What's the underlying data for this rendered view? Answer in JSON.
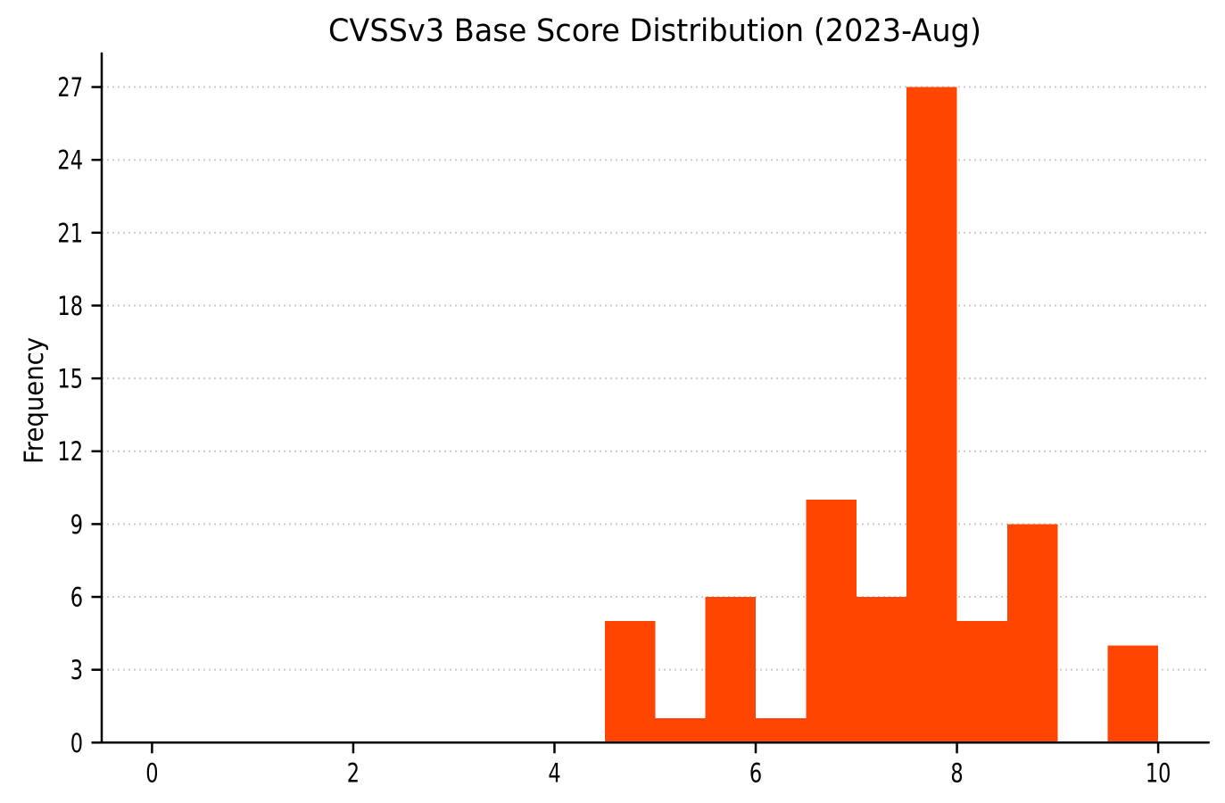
{
  "figure": {
    "background": "#ffffff"
  },
  "chart_data": {
    "type": "bar",
    "variant": "histogram",
    "title": "CVSSv3 Base Score Distribution (2023-Aug)",
    "xlabel": "",
    "ylabel": "Frequency",
    "bin_width": 0.5,
    "bin_edges": [
      4.5,
      5.0,
      5.5,
      6.0,
      6.5,
      7.0,
      7.5,
      8.0,
      8.5,
      9.0,
      9.5,
      10.0
    ],
    "frequencies": [
      5,
      1,
      6,
      1,
      10,
      6,
      27,
      5,
      9,
      0,
      4
    ],
    "x_ticks": [
      0,
      2,
      4,
      6,
      8,
      10
    ],
    "y_ticks": [
      0,
      3,
      6,
      9,
      12,
      15,
      18,
      21,
      24,
      27
    ],
    "xlim": [
      -0.5,
      10.5
    ],
    "ylim": [
      0,
      28.38
    ],
    "bar_color": "#FF4500",
    "axis_color": "#000000",
    "tick_label_color": "#000000",
    "grid_color": "#cccccc",
    "grid": {
      "axis": "y",
      "style": "dotted",
      "visible": true
    },
    "legend": "none"
  }
}
